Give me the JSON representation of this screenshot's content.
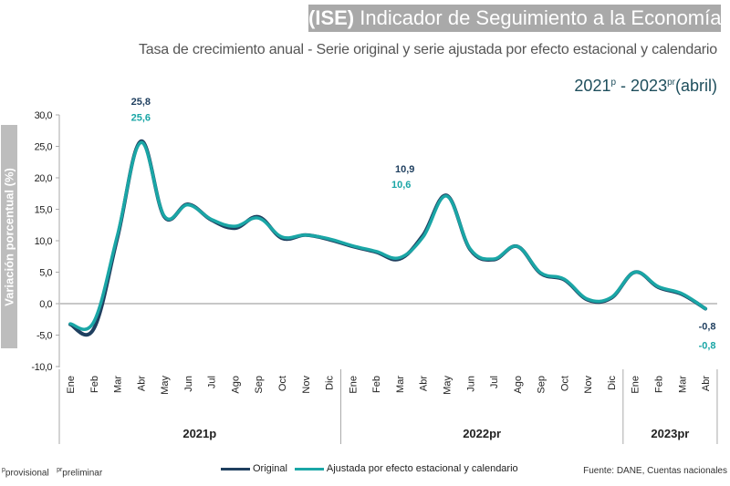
{
  "header": {
    "title_bold": "(ISE)",
    "title_rest": " Indicador de Seguimiento a la Economía",
    "subtitle": "Tasa de crecimiento anual - Serie original y serie ajustada por efecto estacional y calendario",
    "period_start": "2021",
    "period_start_sup": "p",
    "period_sep": " - ",
    "period_end": "2023",
    "period_end_sup": "pr",
    "period_note": "(abril)"
  },
  "footer": {
    "note_p_sup": "p",
    "note_p": "provisional",
    "note_pr_sup": "pr",
    "note_pr": "preliminar",
    "source": "Fuente: DANE, Cuentas nacionales"
  },
  "colors": {
    "original": "#1f3f5f",
    "adjusted": "#1aa6a6",
    "axis": "#999999",
    "zero_line": "#c8c8c8"
  },
  "chart_data": {
    "type": "line",
    "title": "(ISE) Indicador de Seguimiento a la Economía",
    "ylabel": "Variación porcentual (%)",
    "xlabel": "",
    "ylim": [
      -10,
      30
    ],
    "yticks": [
      "30,0",
      "25,0",
      "20,0",
      "15,0",
      "10,0",
      "5,0",
      "0,0",
      "-5,0",
      "-10,0"
    ],
    "ytick_values": [
      30,
      25,
      20,
      15,
      10,
      5,
      0,
      -5,
      -10
    ],
    "categories": [
      "Ene",
      "Feb",
      "Mar",
      "Abr",
      "May",
      "Jun",
      "Jul",
      "Ago",
      "Sep",
      "Oct",
      "Nov",
      "Dic",
      "Ene",
      "Feb",
      "Mar",
      "Abr",
      "May",
      "Jun",
      "Jul",
      "Ago",
      "Sep",
      "Oct",
      "Nov",
      "Dic",
      "Ene",
      "Feb",
      "Mar",
      "Abr"
    ],
    "groups": [
      {
        "label": "2021p",
        "count": 12
      },
      {
        "label": "2022pr",
        "count": 12
      },
      {
        "label": "2023pr",
        "count": 4
      }
    ],
    "series": [
      {
        "name": "Original",
        "color": "#1f3f5f",
        "values": [
          -3.3,
          -4.0,
          10.4,
          25.8,
          13.8,
          15.8,
          13.3,
          12.0,
          13.8,
          10.4,
          10.9,
          10.2,
          9.1,
          8.2,
          7.1,
          10.9,
          17.2,
          8.6,
          7.0,
          9.1,
          4.8,
          3.8,
          0.6,
          0.9,
          5.0,
          2.6,
          1.5,
          -0.8
        ]
      },
      {
        "name": "Ajustada por efecto estacional y calendario",
        "color": "#1aa6a6",
        "values": [
          -3.2,
          -2.9,
          10.8,
          25.6,
          13.9,
          15.7,
          13.4,
          12.3,
          13.6,
          10.6,
          10.9,
          10.3,
          9.2,
          8.3,
          7.3,
          10.6,
          17.1,
          8.7,
          7.1,
          9.1,
          4.9,
          3.9,
          0.7,
          1.0,
          5.0,
          2.7,
          1.6,
          -0.8
        ]
      }
    ],
    "annotations": [
      {
        "index": 3,
        "series": "Original",
        "text": "25,8"
      },
      {
        "index": 3,
        "series": "Ajustada por efecto estacional y calendario",
        "text": "25,6"
      },
      {
        "index": 15,
        "series": "Original",
        "text": "10,9"
      },
      {
        "index": 15,
        "series": "Ajustada por efecto estacional y calendario",
        "text": "10,6"
      },
      {
        "index": 27,
        "series": "Original",
        "text": "-0,8"
      },
      {
        "index": 27,
        "series": "Ajustada por efecto estacional y calendario",
        "text": "-0,8"
      }
    ],
    "legend": {
      "position": "bottom-center",
      "entries": [
        "Original",
        "Ajustada por efecto estacional y calendario"
      ]
    },
    "grid": false
  }
}
